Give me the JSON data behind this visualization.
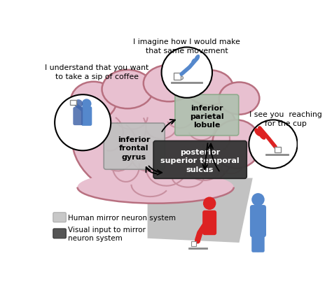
{
  "bg_color": "#ffffff",
  "brain_color": "#e8c0d0",
  "brain_outline_color": "#b87080",
  "brain_sulci_color": "#c890a0",
  "shadow_color": "#b8b8b8",
  "ifg_box_color": "#c0c0c0",
  "ipl_box_color": "#b0c0b0",
  "psts_box_color": "#383838",
  "label_ifg": "inferior\nfrontal\ngyrus",
  "label_ipl": "inferior\nparietal\nlobule",
  "label_psts": "posterior\nsuperior temporal\nsulcus",
  "text_top_left": "I understand that you want\nto take a sip of coffee",
  "text_top_center": "I imagine how I would make\nthat same movement",
  "text_right": "I see you  reaching\nfor the cup",
  "legend_light_color": "#c8c8c8",
  "legend_dark_color": "#555555",
  "legend_light_text": "Human mirror neuron system",
  "legend_dark_text": "Visual input to mirror\nneuron system",
  "red_color": "#dd2222",
  "blue_color": "#5588cc",
  "blue_dark": "#4466aa"
}
